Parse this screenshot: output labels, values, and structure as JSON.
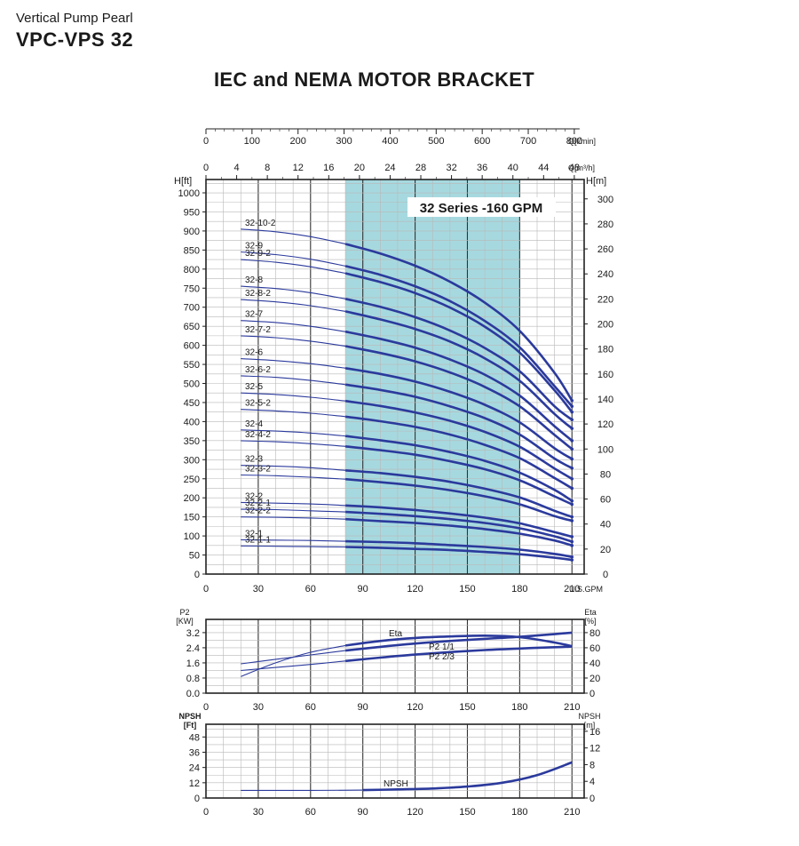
{
  "header": {
    "subtitle": "Vertical Pump Pearl",
    "model": "VPC-VPS 32",
    "title": "IEC and NEMA MOTOR BRACKET"
  },
  "chart_data": [
    {
      "type": "line",
      "name": "head-curves",
      "banner": "32 Series -160 GPM",
      "highlight_range_gpm": [
        80,
        180
      ],
      "axes": {
        "x_bottom": {
          "label": "U.S.GPM",
          "ticks": [
            0,
            30,
            60,
            90,
            120,
            150,
            180,
            210
          ],
          "range": [
            0,
            217
          ]
        },
        "x_top_lmin": {
          "label": "Q[l/min]",
          "ticks": [
            0,
            100,
            200,
            300,
            400,
            500,
            600,
            700,
            800
          ]
        },
        "x_top_m3h": {
          "label": "Q[m³/h]",
          "ticks": [
            0,
            4,
            8,
            12,
            16,
            20,
            24,
            28,
            32,
            36,
            40,
            44,
            48
          ]
        },
        "y_left": {
          "label": "H[ft]",
          "ticks": [
            0,
            50,
            100,
            150,
            200,
            250,
            300,
            350,
            400,
            450,
            500,
            550,
            600,
            650,
            700,
            750,
            800,
            850,
            900,
            950,
            1000
          ],
          "range": [
            0,
            1035
          ]
        },
        "y_right": {
          "label": "H[m]",
          "ticks": [
            0,
            20,
            40,
            60,
            80,
            100,
            120,
            140,
            160,
            180,
            200,
            220,
            240,
            260,
            280,
            300
          ]
        }
      },
      "grid": true,
      "x_gpm": [
        20,
        40,
        60,
        80,
        100,
        120,
        140,
        160,
        180,
        200,
        210
      ],
      "series": [
        {
          "name": "32-10-2",
          "values": [
            905,
            898,
            885,
            866,
            841,
            809,
            767,
            712,
            638,
            528,
            455
          ]
        },
        {
          "name": "32-9",
          "values": [
            845,
            838,
            826,
            808,
            785,
            755,
            716,
            664,
            595,
            493,
            440
          ]
        },
        {
          "name": "32-9-2",
          "values": [
            825,
            818,
            806,
            789,
            766,
            737,
            699,
            649,
            581,
            482,
            425
          ]
        },
        {
          "name": "32-8",
          "values": [
            755,
            749,
            738,
            722,
            701,
            674,
            639,
            593,
            532,
            440,
            405
          ]
        },
        {
          "name": "32-8-2",
          "values": [
            720,
            714,
            704,
            689,
            668,
            643,
            610,
            566,
            507,
            420,
            382
          ]
        },
        {
          "name": "32-7",
          "values": [
            665,
            660,
            650,
            636,
            617,
            594,
            563,
            523,
            468,
            388,
            350
          ]
        },
        {
          "name": "32-7-2",
          "values": [
            625,
            620,
            611,
            598,
            580,
            558,
            529,
            491,
            440,
            365,
            328
          ]
        },
        {
          "name": "32-6",
          "values": [
            565,
            560,
            552,
            540,
            525,
            505,
            478,
            444,
            398,
            330,
            302
          ]
        },
        {
          "name": "32-6-2",
          "values": [
            520,
            516,
            508,
            497,
            483,
            465,
            440,
            409,
            366,
            303,
            278
          ]
        },
        {
          "name": "32-5",
          "values": [
            475,
            471,
            464,
            454,
            441,
            424,
            402,
            373,
            334,
            277,
            250
          ]
        },
        {
          "name": "32-5-2",
          "values": [
            432,
            428,
            422,
            413,
            401,
            386,
            366,
            339,
            304,
            252,
            225
          ]
        },
        {
          "name": "32-4",
          "values": [
            378,
            375,
            370,
            362,
            351,
            338,
            320,
            297,
            266,
            221,
            192
          ]
        },
        {
          "name": "32-4-2",
          "values": [
            350,
            347,
            342,
            335,
            325,
            313,
            296,
            275,
            246,
            204,
            183
          ]
        },
        {
          "name": "32-3",
          "values": [
            285,
            283,
            279,
            272,
            265,
            255,
            242,
            224,
            201,
            166,
            150
          ]
        },
        {
          "name": "32-3-2",
          "values": [
            260,
            258,
            254,
            249,
            241,
            232,
            220,
            204,
            183,
            152,
            140
          ]
        },
        {
          "name": "32-2",
          "values": [
            188,
            186,
            184,
            180,
            175,
            168,
            159,
            148,
            133,
            110,
            98
          ]
        },
        {
          "name": "32-2-1",
          "values": [
            170,
            169,
            166,
            163,
            158,
            152,
            144,
            134,
            120,
            99,
            85
          ]
        },
        {
          "name": "32-2-2",
          "values": [
            150,
            149,
            147,
            144,
            139,
            134,
            127,
            118,
            106,
            88,
            75
          ]
        },
        {
          "name": "32-1",
          "values": [
            90,
            89,
            88,
            86,
            84,
            81,
            76,
            71,
            64,
            53,
            45
          ]
        },
        {
          "name": "32-1-1",
          "values": [
            74,
            73,
            72,
            71,
            69,
            66,
            63,
            58,
            52,
            43,
            37
          ]
        }
      ]
    },
    {
      "type": "line",
      "name": "power-efficiency",
      "axes": {
        "x": {
          "ticks": [
            0,
            30,
            60,
            90,
            120,
            150,
            180,
            210
          ],
          "range": [
            0,
            217
          ]
        },
        "y_left": {
          "label_lines": [
            "P2",
            "[KW]"
          ],
          "ticks": [
            0.0,
            0.8,
            1.6,
            2.4,
            3.2
          ],
          "tick_labels": [
            "0.0",
            "0.8",
            "1.6",
            "2.4",
            "3.2"
          ],
          "range": [
            0,
            3.9
          ]
        },
        "y_right": {
          "label_lines": [
            "Eta",
            "[%]"
          ],
          "ticks": [
            0,
            20,
            40,
            60,
            80
          ],
          "range": [
            0,
            97.5
          ]
        }
      },
      "grid": true,
      "x": [
        20,
        40,
        60,
        80,
        100,
        120,
        140,
        160,
        180,
        200,
        210
      ],
      "series": [
        {
          "name": "Eta",
          "axis": "right",
          "values": [
            22,
            40,
            54,
            63,
            69,
            73,
            75,
            76,
            74,
            67,
            62
          ]
        },
        {
          "name": "P2 1/1",
          "axis": "left",
          "values": [
            1.55,
            1.79,
            2.02,
            2.25,
            2.45,
            2.62,
            2.76,
            2.87,
            2.98,
            3.12,
            3.2
          ]
        },
        {
          "name": "P2 2/3",
          "axis": "left",
          "values": [
            1.2,
            1.36,
            1.52,
            1.7,
            1.88,
            2.04,
            2.17,
            2.28,
            2.36,
            2.43,
            2.46
          ]
        }
      ]
    },
    {
      "type": "line",
      "name": "npsh",
      "axes": {
        "x": {
          "ticks": [
            0,
            30,
            60,
            90,
            120,
            150,
            180,
            210
          ],
          "range": [
            0,
            217
          ]
        },
        "y_left": {
          "label_lines": [
            "NPSH",
            "[Ft]"
          ],
          "ticks": [
            0,
            12,
            24,
            36,
            48
          ],
          "range": [
            0,
            58
          ]
        },
        "y_right": {
          "label_lines": [
            "NPSH",
            "[m]"
          ],
          "ticks": [
            0,
            4,
            8,
            12,
            16
          ],
          "range": [
            0,
            17.68
          ]
        }
      },
      "grid": true,
      "x": [
        20,
        60,
        90,
        110,
        130,
        150,
        170,
        190,
        210
      ],
      "series": [
        {
          "name": "NPSH",
          "values": [
            6,
            6,
            6.2,
            6.8,
            7.5,
            9,
            12,
            18,
            28
          ]
        }
      ]
    }
  ]
}
